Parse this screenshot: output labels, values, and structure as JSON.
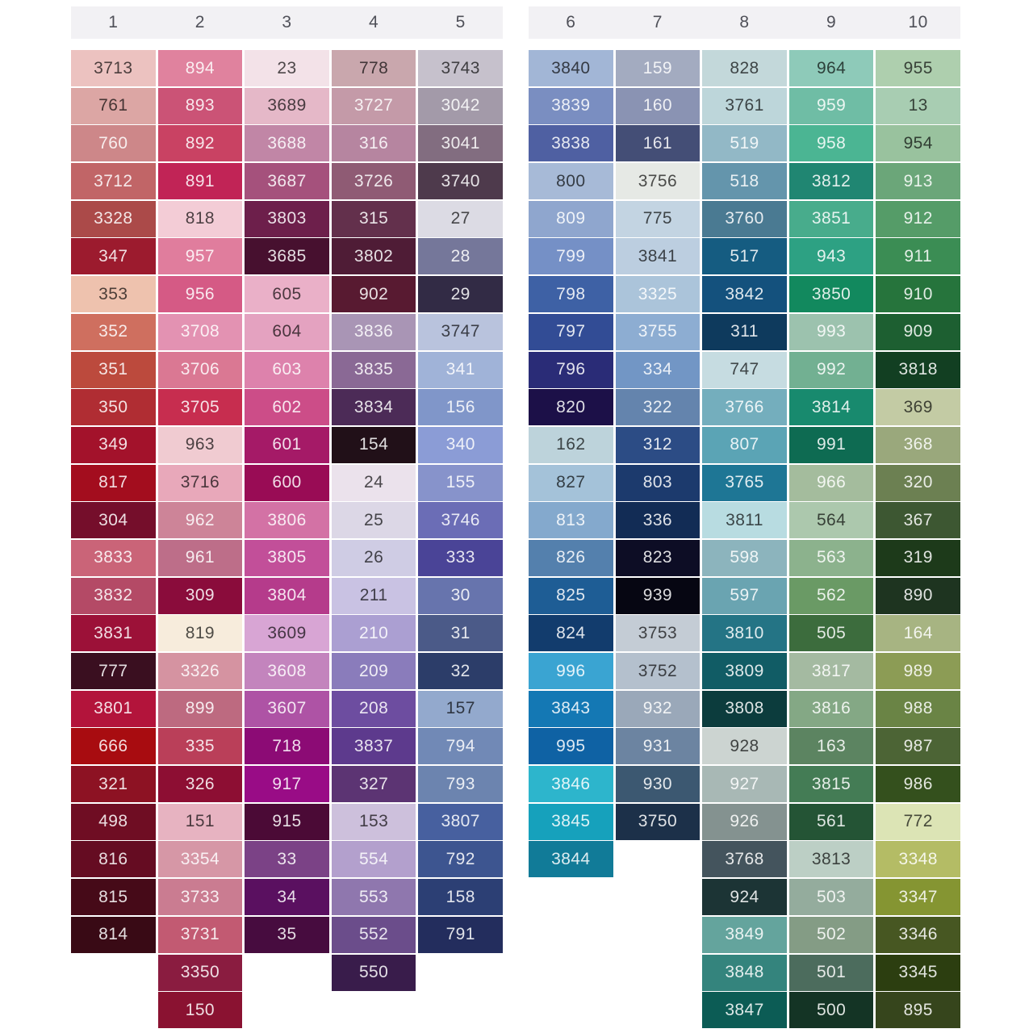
{
  "page": {
    "background": "#ffffff"
  },
  "header": {
    "bar_color": "#f2f1f4",
    "text_color": "#4f5058"
  },
  "cell_legend": "cells arrays are [dmc_number, swatch_hex, text_tone(d=dark,w=white)]",
  "columns": [
    {
      "header": "1",
      "cells": [
        [
          "3713",
          "#ecc2c0",
          "d"
        ],
        [
          "761",
          "#dca6a4",
          "d"
        ],
        [
          "760",
          "#cd8789",
          "w"
        ],
        [
          "3712",
          "#c16567",
          "w"
        ],
        [
          "3328",
          "#ab4a49",
          "w"
        ],
        [
          "347",
          "#9c1b2e",
          "w"
        ],
        [
          "353",
          "#eec2ae",
          "d"
        ],
        [
          "352",
          "#cf6f5f",
          "w"
        ],
        [
          "351",
          "#bc4a3d",
          "w"
        ],
        [
          "350",
          "#b02d33",
          "w"
        ],
        [
          "349",
          "#a3122b",
          "w"
        ],
        [
          "817",
          "#a30d1e",
          "w"
        ],
        [
          "304",
          "#750e2b",
          "w"
        ],
        [
          "3833",
          "#ca6478",
          "w"
        ],
        [
          "3832",
          "#b44a66",
          "w"
        ],
        [
          "3831",
          "#9c1138",
          "w"
        ],
        [
          "777",
          "#3a0f20",
          "w"
        ],
        [
          "3801",
          "#b3143b",
          "w"
        ],
        [
          "666",
          "#a80c10",
          "w"
        ],
        [
          "321",
          "#8d1223",
          "w"
        ],
        [
          "498",
          "#6f0d23",
          "w"
        ],
        [
          "816",
          "#650c22",
          "w"
        ],
        [
          "815",
          "#460a18",
          "w"
        ],
        [
          "814",
          "#390a15",
          "w"
        ]
      ]
    },
    {
      "header": "2",
      "cells": [
        [
          "894",
          "#e0829e",
          "w"
        ],
        [
          "893",
          "#cb5376",
          "w"
        ],
        [
          "892",
          "#c94263",
          "w"
        ],
        [
          "891",
          "#c12456",
          "w"
        ],
        [
          "818",
          "#f3ccd6",
          "d"
        ],
        [
          "957",
          "#e07d9d",
          "w"
        ],
        [
          "956",
          "#d55a85",
          "w"
        ],
        [
          "3708",
          "#e392b2",
          "w"
        ],
        [
          "3706",
          "#da7893",
          "w"
        ],
        [
          "3705",
          "#c72d4f",
          "w"
        ],
        [
          "963",
          "#f0cbd1",
          "d"
        ],
        [
          "3716",
          "#e8a8ba",
          "d"
        ],
        [
          "962",
          "#cd8498",
          "w"
        ],
        [
          "961",
          "#bd6e89",
          "w"
        ],
        [
          "309",
          "#8a0c3b",
          "w"
        ],
        [
          "819",
          "#f7ecdc",
          "d"
        ],
        [
          "3326",
          "#d593a1",
          "w"
        ],
        [
          "899",
          "#bd6a80",
          "w"
        ],
        [
          "335",
          "#ba3f59",
          "w"
        ],
        [
          "326",
          "#8d0e33",
          "w"
        ],
        [
          "151",
          "#e7b3c1",
          "d"
        ],
        [
          "3354",
          "#d697a6",
          "w"
        ],
        [
          "3733",
          "#ca7c91",
          "w"
        ],
        [
          "3731",
          "#c25a72",
          "w"
        ],
        [
          "3350",
          "#8a1c40",
          "w"
        ],
        [
          "150",
          "#8a1231",
          "w"
        ]
      ]
    },
    {
      "header": "3",
      "cells": [
        [
          "23",
          "#f3e2e8",
          "d"
        ],
        [
          "3689",
          "#e5b8c8",
          "d"
        ],
        [
          "3688",
          "#c186a6",
          "w"
        ],
        [
          "3687",
          "#a5517c",
          "w"
        ],
        [
          "3803",
          "#6d1f4b",
          "w"
        ],
        [
          "3685",
          "#47102f",
          "w"
        ],
        [
          "605",
          "#eab0c8",
          "d"
        ],
        [
          "604",
          "#e4a2c0",
          "d"
        ],
        [
          "603",
          "#dd82ac",
          "w"
        ],
        [
          "602",
          "#cc4d88",
          "w"
        ],
        [
          "601",
          "#a51a67",
          "w"
        ],
        [
          "600",
          "#990c55",
          "w"
        ],
        [
          "3806",
          "#d372a5",
          "w"
        ],
        [
          "3805",
          "#c24f99",
          "w"
        ],
        [
          "3804",
          "#b53b8b",
          "w"
        ],
        [
          "3609",
          "#d8a5d4",
          "d"
        ],
        [
          "3608",
          "#c384bd",
          "w"
        ],
        [
          "3607",
          "#ae53a5",
          "w"
        ],
        [
          "718",
          "#8c0b75",
          "w"
        ],
        [
          "917",
          "#990c86",
          "w"
        ],
        [
          "915",
          "#4b0a36",
          "w"
        ],
        [
          "33",
          "#7b4286",
          "w"
        ],
        [
          "34",
          "#5a1060",
          "w"
        ],
        [
          "35",
          "#470c3f",
          "w"
        ]
      ]
    },
    {
      "header": "4",
      "cells": [
        [
          "778",
          "#c9a7ad",
          "d"
        ],
        [
          "3727",
          "#c49aa8",
          "w"
        ],
        [
          "316",
          "#b685a0",
          "w"
        ],
        [
          "3726",
          "#8f5b74",
          "w"
        ],
        [
          "315",
          "#63304c",
          "w"
        ],
        [
          "3802",
          "#4f1c36",
          "w"
        ],
        [
          "902",
          "#581a31",
          "w"
        ],
        [
          "3836",
          "#a995b5",
          "w"
        ],
        [
          "3835",
          "#8a6995",
          "w"
        ],
        [
          "3834",
          "#4c2b57",
          "w"
        ],
        [
          "154",
          "#211018",
          "w"
        ],
        [
          "24",
          "#ebe2ec",
          "d"
        ],
        [
          "25",
          "#dcd7e6",
          "d"
        ],
        [
          "26",
          "#cfcce4",
          "d"
        ],
        [
          "211",
          "#c9c2e3",
          "d"
        ],
        [
          "210",
          "#ab9fd2",
          "w"
        ],
        [
          "209",
          "#8a7cbb",
          "w"
        ],
        [
          "208",
          "#6d4da0",
          "w"
        ],
        [
          "3837",
          "#5d3a8d",
          "w"
        ],
        [
          "327",
          "#5c3473",
          "w"
        ],
        [
          "153",
          "#cdc0dc",
          "d"
        ],
        [
          "554",
          "#b3a0cd",
          "w"
        ],
        [
          "553",
          "#8f77ae",
          "w"
        ],
        [
          "552",
          "#6b4d8b",
          "w"
        ],
        [
          "550",
          "#391c4b",
          "w"
        ]
      ]
    },
    {
      "header": "5",
      "cells": [
        [
          "3743",
          "#c6c1cc",
          "d"
        ],
        [
          "3042",
          "#a39aa9",
          "w"
        ],
        [
          "3041",
          "#826d80",
          "w"
        ],
        [
          "3740",
          "#4e3a4c",
          "w"
        ],
        [
          "27",
          "#dcdbe4",
          "d"
        ],
        [
          "28",
          "#75779a",
          "w"
        ],
        [
          "29",
          "#322b45",
          "w"
        ],
        [
          "3747",
          "#b9c3dd",
          "d"
        ],
        [
          "341",
          "#a0b3d8",
          "w"
        ],
        [
          "156",
          "#8096c9",
          "w"
        ],
        [
          "340",
          "#8b9cd6",
          "w"
        ],
        [
          "155",
          "#8793cb",
          "w"
        ],
        [
          "3746",
          "#6b6db6",
          "w"
        ],
        [
          "333",
          "#4a4497",
          "w"
        ],
        [
          "30",
          "#6774ad",
          "w"
        ],
        [
          "31",
          "#4b5a88",
          "w"
        ],
        [
          "32",
          "#2c3d69",
          "w"
        ],
        [
          "157",
          "#93a9cd",
          "d"
        ],
        [
          "794",
          "#7189b6",
          "w"
        ],
        [
          "793",
          "#6c84af",
          "w"
        ],
        [
          "3807",
          "#47609f",
          "w"
        ],
        [
          "792",
          "#3d5590",
          "w"
        ],
        [
          "158",
          "#2c3f74",
          "w"
        ],
        [
          "791",
          "#232d5d",
          "w"
        ]
      ]
    },
    {
      "header": "6",
      "cells": [
        [
          "3840",
          "#a2b6d6",
          "d"
        ],
        [
          "3839",
          "#7a8ec1",
          "w"
        ],
        [
          "3838",
          "#4f60a2",
          "w"
        ],
        [
          "800",
          "#a7bad7",
          "d"
        ],
        [
          "809",
          "#8fa6ce",
          "w"
        ],
        [
          "799",
          "#7590c6",
          "w"
        ],
        [
          "798",
          "#3e61a5",
          "w"
        ],
        [
          "797",
          "#324c95",
          "w"
        ],
        [
          "796",
          "#2a2c77",
          "w"
        ],
        [
          "820",
          "#1c1048",
          "w"
        ],
        [
          "162",
          "#bdd3db",
          "d"
        ],
        [
          "827",
          "#a4c2d9",
          "d"
        ],
        [
          "813",
          "#84a9cd",
          "w"
        ],
        [
          "826",
          "#5480ad",
          "w"
        ],
        [
          "825",
          "#1e5d95",
          "w"
        ],
        [
          "824",
          "#123c6d",
          "w"
        ],
        [
          "996",
          "#3aa4d2",
          "w"
        ],
        [
          "3843",
          "#1478b4",
          "w"
        ],
        [
          "995",
          "#0f62a4",
          "w"
        ],
        [
          "3846",
          "#2db5cc",
          "w"
        ],
        [
          "3845",
          "#16a1bc",
          "w"
        ],
        [
          "3844",
          "#117b98",
          "w"
        ]
      ]
    },
    {
      "header": "7",
      "cells": [
        [
          "159",
          "#a3abc0",
          "w"
        ],
        [
          "160",
          "#8a93b3",
          "w"
        ],
        [
          "161",
          "#444e76",
          "w"
        ],
        [
          "3756",
          "#e6e9e5",
          "d"
        ],
        [
          "775",
          "#c3d4e2",
          "d"
        ],
        [
          "3841",
          "#bccee0",
          "d"
        ],
        [
          "3325",
          "#abc4da",
          "w"
        ],
        [
          "3755",
          "#8dadd2",
          "w"
        ],
        [
          "334",
          "#7296c5",
          "w"
        ],
        [
          "322",
          "#6484ad",
          "w"
        ],
        [
          "312",
          "#2c4c85",
          "w"
        ],
        [
          "803",
          "#1c3a6d",
          "w"
        ],
        [
          "336",
          "#122c55",
          "w"
        ],
        [
          "823",
          "#0d0d25",
          "w"
        ],
        [
          "939",
          "#060612",
          "w"
        ],
        [
          "3753",
          "#c4ccd5",
          "d"
        ],
        [
          "3752",
          "#b4c0cd",
          "d"
        ],
        [
          "932",
          "#9aa8b9",
          "w"
        ],
        [
          "931",
          "#6c84a1",
          "w"
        ],
        [
          "930",
          "#3c5871",
          "w"
        ],
        [
          "3750",
          "#1c3049",
          "w"
        ]
      ]
    },
    {
      "header": "8",
      "cells": [
        [
          "828",
          "#c3d8da",
          "d"
        ],
        [
          "3761",
          "#bdd6da",
          "d"
        ],
        [
          "519",
          "#92b8c6",
          "w"
        ],
        [
          "518",
          "#6495ac",
          "w"
        ],
        [
          "3760",
          "#4a7a92",
          "w"
        ],
        [
          "517",
          "#155c81",
          "w"
        ],
        [
          "3842",
          "#14517d",
          "w"
        ],
        [
          "311",
          "#0e3a5d",
          "w"
        ],
        [
          "747",
          "#c6dce1",
          "d"
        ],
        [
          "3766",
          "#74aebd",
          "w"
        ],
        [
          "807",
          "#5ba4b5",
          "w"
        ],
        [
          "3765",
          "#1e7695",
          "w"
        ],
        [
          "3811",
          "#b8dce1",
          "d"
        ],
        [
          "598",
          "#8cb4bd",
          "w"
        ],
        [
          "597",
          "#6aa4b1",
          "w"
        ],
        [
          "3810",
          "#247485",
          "w"
        ],
        [
          "3809",
          "#115c65",
          "w"
        ],
        [
          "3808",
          "#0c3c3d",
          "w"
        ],
        [
          "928",
          "#ccd4d1",
          "d"
        ],
        [
          "927",
          "#a8b8b5",
          "w"
        ],
        [
          "926",
          "#849290",
          "w"
        ],
        [
          "3768",
          "#44545d",
          "w"
        ],
        [
          "924",
          "#1c3435",
          "w"
        ],
        [
          "3849",
          "#64a49d",
          "w"
        ],
        [
          "3848",
          "#34847d",
          "w"
        ],
        [
          "3847",
          "#0c5c55",
          "w"
        ]
      ]
    },
    {
      "header": "9",
      "cells": [
        [
          "964",
          "#8ecab9",
          "d"
        ],
        [
          "959",
          "#6fbda5",
          "w"
        ],
        [
          "958",
          "#4bb593",
          "w"
        ],
        [
          "3812",
          "#208672",
          "w"
        ],
        [
          "3851",
          "#48ac8c",
          "w"
        ],
        [
          "943",
          "#2da183",
          "w"
        ],
        [
          "3850",
          "#12895e",
          "w"
        ],
        [
          "993",
          "#9cc2ae",
          "w"
        ],
        [
          "992",
          "#72b092",
          "w"
        ],
        [
          "3814",
          "#188a6e",
          "w"
        ],
        [
          "991",
          "#0e6b52",
          "w"
        ],
        [
          "966",
          "#a4bc9d",
          "w"
        ],
        [
          "564",
          "#acc8ad",
          "d"
        ],
        [
          "563",
          "#8cb28d",
          "w"
        ],
        [
          "562",
          "#6a9a65",
          "w"
        ],
        [
          "505",
          "#3c6c3d",
          "w"
        ],
        [
          "3817",
          "#a4baa1",
          "w"
        ],
        [
          "3816",
          "#84a885",
          "w"
        ],
        [
          "163",
          "#5c8461",
          "w"
        ],
        [
          "3815",
          "#447c55",
          "w"
        ],
        [
          "561",
          "#245435",
          "w"
        ],
        [
          "3813",
          "#bccfc5",
          "d"
        ],
        [
          "503",
          "#94ac9d",
          "w"
        ],
        [
          "502",
          "#849c85",
          "w"
        ],
        [
          "501",
          "#4c6c5d",
          "w"
        ],
        [
          "500",
          "#143425",
          "w"
        ]
      ]
    },
    {
      "header": "10",
      "cells": [
        [
          "955",
          "#aecfae",
          "d"
        ],
        [
          "13",
          "#a8cdb2",
          "d"
        ],
        [
          "954",
          "#99c29e",
          "d"
        ],
        [
          "913",
          "#6ba679",
          "w"
        ],
        [
          "912",
          "#559c68",
          "w"
        ],
        [
          "911",
          "#3b8d54",
          "w"
        ],
        [
          "910",
          "#26743c",
          "w"
        ],
        [
          "909",
          "#1d5f31",
          "w"
        ],
        [
          "3818",
          "#123f22",
          "w"
        ],
        [
          "369",
          "#c3cba4",
          "d"
        ],
        [
          "368",
          "#9aa87c",
          "w"
        ],
        [
          "320",
          "#6c8052",
          "w"
        ],
        [
          "367",
          "#3d5732",
          "w"
        ],
        [
          "319",
          "#1d3a1a",
          "w"
        ],
        [
          "890",
          "#1e3420",
          "w"
        ],
        [
          "164",
          "#a7b482",
          "w"
        ],
        [
          "989",
          "#8c9c55",
          "w"
        ],
        [
          "988",
          "#6a8445",
          "w"
        ],
        [
          "987",
          "#4c6435",
          "w"
        ],
        [
          "986",
          "#34501d",
          "w"
        ],
        [
          "772",
          "#dce4b5",
          "d"
        ],
        [
          "3348",
          "#b4bc65",
          "w"
        ],
        [
          "3347",
          "#859532",
          "w"
        ],
        [
          "3346",
          "#475722",
          "w"
        ],
        [
          "3345",
          "#2c3e10",
          "w"
        ],
        [
          "895",
          "#36451c",
          "w"
        ]
      ]
    }
  ]
}
